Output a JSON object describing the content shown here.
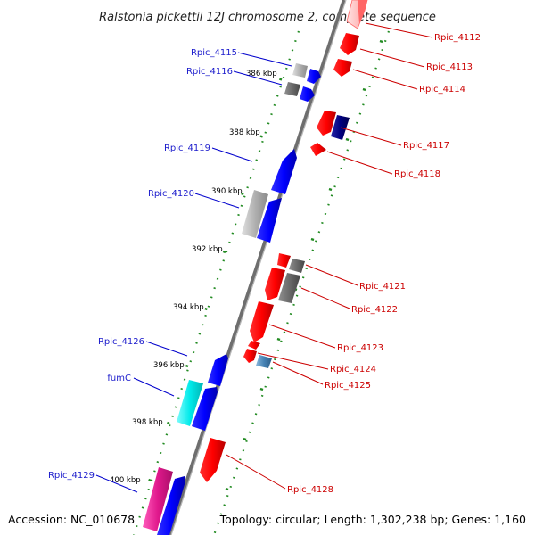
{
  "title": "Ralstonia pickettii 12J chromosome 2, complete sequence",
  "footer": {
    "accession": "Accession: NC_010678",
    "topology": "Topology: circular; Length: 1,302,238 bp; Genes: 1,160"
  },
  "scale_labels": [
    "386 kbp",
    "388 kbp",
    "390 kbp",
    "392 kbp",
    "394 kbp",
    "396 kbp",
    "398 kbp",
    "400 kbp"
  ],
  "left_labels": [
    {
      "id": "Rpic_4115",
      "text": "Rpic_4115"
    },
    {
      "id": "Rpic_4116",
      "text": "Rpic_4116"
    },
    {
      "id": "Rpic_4119",
      "text": "Rpic_4119"
    },
    {
      "id": "Rpic_4120",
      "text": "Rpic_4120"
    },
    {
      "id": "Rpic_4126",
      "text": "Rpic_4126"
    },
    {
      "id": "fumC",
      "text": "fumC"
    },
    {
      "id": "Rpic_4129",
      "text": "Rpic_4129"
    }
  ],
  "right_labels": [
    {
      "id": "Rpic_4112",
      "text": "Rpic_4112"
    },
    {
      "id": "Rpic_4113",
      "text": "Rpic_4113"
    },
    {
      "id": "Rpic_4114",
      "text": "Rpic_4114"
    },
    {
      "id": "Rpic_4117",
      "text": "Rpic_4117"
    },
    {
      "id": "Rpic_4118",
      "text": "Rpic_4118"
    },
    {
      "id": "Rpic_4121",
      "text": "Rpic_4121"
    },
    {
      "id": "Rpic_4122",
      "text": "Rpic_4122"
    },
    {
      "id": "Rpic_4123",
      "text": "Rpic_4123"
    },
    {
      "id": "Rpic_4124",
      "text": "Rpic_4124"
    },
    {
      "id": "Rpic_4125",
      "text": "Rpic_4125"
    },
    {
      "id": "Rpic_4128",
      "text": "Rpic_4128"
    }
  ],
  "colors": {
    "reverse_strand": "#ff0000",
    "forward_strand": "#0000ff",
    "hypothetical": "#808080",
    "fumC": "#00e5e5",
    "Rpic_4129": "#e0188c",
    "Rpic_4125": "#4682b4",
    "Rpic_4117": "#000080",
    "backbone": "#808080",
    "scale_ticks": "#228b22"
  }
}
